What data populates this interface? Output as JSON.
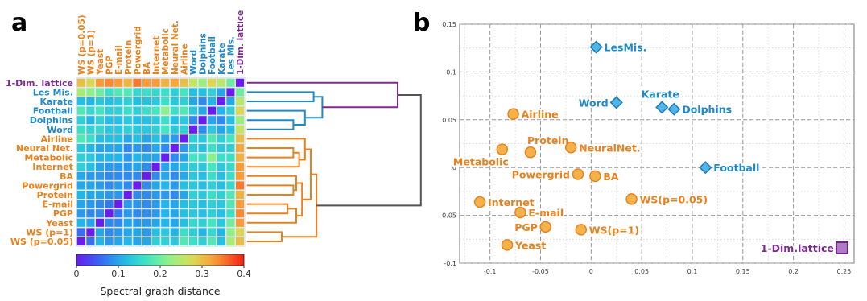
{
  "panels": {
    "a": "a",
    "b": "b"
  },
  "colors": {
    "orange": "#e8821e",
    "blue": "#1f8ac8",
    "purple": "#7b2c8e",
    "gray": "#555555",
    "grid": "#b3b3b3"
  },
  "chart_data": [
    {
      "type": "heatmap",
      "panel": "a",
      "rows": [
        "1-Dim. lattice",
        "Les Mis.",
        "Karate",
        "Football",
        "Dolphins",
        "Word",
        "Airline",
        "Neural Net.",
        "Metabolic",
        "Internet",
        "BA",
        "Powergrid",
        "Protein",
        "E-mail",
        "PGP",
        "Yeast",
        "WS (p=1)",
        "WS (p=0.05)"
      ],
      "columns": [
        "WS (p=0.05)",
        "WS (p=1)",
        "Yeast",
        "PGP",
        "E-mail",
        "Protein",
        "Powergrid",
        "BA",
        "Internet",
        "Metabolic",
        "Neural Net.",
        "Airline",
        "Word",
        "Dolphins",
        "Football",
        "Karate",
        "Les Mis.",
        "1-Dim. lattice"
      ],
      "row_groups": [
        "purple",
        "blue",
        "blue",
        "blue",
        "blue",
        "blue",
        "orange",
        "orange",
        "orange",
        "orange",
        "orange",
        "orange",
        "orange",
        "orange",
        "orange",
        "orange",
        "orange",
        "orange"
      ],
      "column_groups": [
        "orange",
        "orange",
        "orange",
        "orange",
        "orange",
        "orange",
        "orange",
        "orange",
        "orange",
        "orange",
        "orange",
        "orange",
        "blue",
        "blue",
        "blue",
        "blue",
        "blue",
        "purple"
      ],
      "values": [
        [
          0.3,
          0.28,
          0.33,
          0.34,
          0.33,
          0.31,
          0.35,
          0.33,
          0.33,
          0.31,
          0.32,
          0.3,
          0.26,
          0.23,
          0.28,
          0.25,
          0.2,
          0.0
        ],
        [
          0.24,
          0.22,
          0.2,
          0.16,
          0.18,
          0.18,
          0.15,
          0.16,
          0.15,
          0.16,
          0.14,
          0.17,
          0.12,
          0.12,
          0.14,
          0.1,
          0.0,
          0.2
        ],
        [
          0.12,
          0.11,
          0.13,
          0.12,
          0.13,
          0.14,
          0.12,
          0.12,
          0.13,
          0.16,
          0.13,
          0.14,
          0.1,
          0.08,
          0.11,
          0.0,
          0.1,
          0.25
        ],
        [
          0.18,
          0.15,
          0.17,
          0.14,
          0.14,
          0.16,
          0.14,
          0.16,
          0.17,
          0.22,
          0.16,
          0.18,
          0.13,
          0.1,
          0.0,
          0.11,
          0.14,
          0.28
        ],
        [
          0.14,
          0.11,
          0.14,
          0.12,
          0.12,
          0.13,
          0.12,
          0.12,
          0.13,
          0.16,
          0.12,
          0.13,
          0.08,
          0.0,
          0.1,
          0.08,
          0.12,
          0.23
        ],
        [
          0.16,
          0.14,
          0.15,
          0.13,
          0.13,
          0.14,
          0.13,
          0.13,
          0.14,
          0.17,
          0.13,
          0.14,
          0.0,
          0.08,
          0.13,
          0.1,
          0.12,
          0.26
        ],
        [
          0.18,
          0.16,
          0.12,
          0.12,
          0.12,
          0.1,
          0.12,
          0.1,
          0.12,
          0.1,
          0.09,
          0.0,
          0.14,
          0.13,
          0.18,
          0.14,
          0.17,
          0.3
        ],
        [
          0.13,
          0.11,
          0.1,
          0.1,
          0.1,
          0.08,
          0.09,
          0.08,
          0.1,
          0.08,
          0.0,
          0.09,
          0.13,
          0.12,
          0.16,
          0.13,
          0.14,
          0.32
        ],
        [
          0.14,
          0.13,
          0.11,
          0.11,
          0.11,
          0.09,
          0.11,
          0.1,
          0.1,
          0.0,
          0.08,
          0.1,
          0.17,
          0.16,
          0.22,
          0.16,
          0.16,
          0.31
        ],
        [
          0.14,
          0.12,
          0.1,
          0.09,
          0.09,
          0.09,
          0.1,
          0.08,
          0.0,
          0.1,
          0.1,
          0.12,
          0.14,
          0.13,
          0.17,
          0.13,
          0.15,
          0.33
        ],
        [
          0.1,
          0.09,
          0.09,
          0.08,
          0.08,
          0.08,
          0.08,
          0.0,
          0.08,
          0.1,
          0.08,
          0.1,
          0.13,
          0.12,
          0.16,
          0.12,
          0.16,
          0.33
        ],
        [
          0.1,
          0.1,
          0.09,
          0.08,
          0.09,
          0.08,
          0.0,
          0.08,
          0.1,
          0.11,
          0.09,
          0.12,
          0.13,
          0.12,
          0.14,
          0.12,
          0.15,
          0.35
        ],
        [
          0.11,
          0.1,
          0.1,
          0.09,
          0.09,
          0.0,
          0.08,
          0.08,
          0.09,
          0.09,
          0.08,
          0.1,
          0.14,
          0.13,
          0.16,
          0.14,
          0.18,
          0.31
        ],
        [
          0.1,
          0.09,
          0.08,
          0.07,
          0.0,
          0.09,
          0.09,
          0.08,
          0.09,
          0.11,
          0.1,
          0.12,
          0.13,
          0.12,
          0.14,
          0.13,
          0.18,
          0.33
        ],
        [
          0.09,
          0.08,
          0.08,
          0.0,
          0.07,
          0.09,
          0.08,
          0.08,
          0.09,
          0.11,
          0.1,
          0.12,
          0.13,
          0.12,
          0.14,
          0.12,
          0.16,
          0.34
        ],
        [
          0.11,
          0.1,
          0.0,
          0.08,
          0.08,
          0.1,
          0.09,
          0.09,
          0.1,
          0.11,
          0.1,
          0.12,
          0.15,
          0.14,
          0.17,
          0.13,
          0.2,
          0.33
        ],
        [
          0.06,
          0.0,
          0.1,
          0.08,
          0.09,
          0.1,
          0.1,
          0.09,
          0.12,
          0.13,
          0.11,
          0.16,
          0.14,
          0.11,
          0.15,
          0.11,
          0.22,
          0.28
        ],
        [
          0.0,
          0.06,
          0.11,
          0.09,
          0.1,
          0.11,
          0.1,
          0.1,
          0.14,
          0.14,
          0.13,
          0.18,
          0.16,
          0.14,
          0.18,
          0.12,
          0.24,
          0.3
        ]
      ],
      "colorbar": {
        "label": "Spectral graph distance",
        "range": [
          0,
          0.4
        ],
        "ticks": [
          "0",
          "0.1",
          "0.2",
          "0.3",
          "0.4"
        ],
        "colormap": "rainbow"
      },
      "dendrogram": {
        "links": [
          {
            "a": "WS (p=0.05)",
            "b": "WS (p=1)",
            "h": 0.06
          },
          {
            "a": "PGP",
            "b": "E-mail",
            "h": 0.07
          },
          {
            "a": "Yeast",
            "b": "PGP+E-mail",
            "h": 0.085
          },
          {
            "a": "Protein",
            "b": "Powergrid",
            "h": 0.08
          },
          {
            "a": "BA",
            "b": "Protein+Powergrid",
            "h": 0.085
          },
          {
            "a": "BA+Protein+Powergrid",
            "b": "Yeast+PGP+E-mail",
            "h": 0.095
          },
          {
            "a": "Neural Net.",
            "b": "Metabolic",
            "h": 0.08
          },
          {
            "a": "Internet",
            "b": "Neural Net.+Metabolic",
            "h": 0.09
          },
          {
            "a": "Airline",
            "b": "Internet+Neural Net.+Metabolic",
            "h": 0.1
          },
          {
            "a": "Airline group",
            "b": "BA group",
            "h": 0.11
          },
          {
            "a": "Orange cluster",
            "b": "WS pair",
            "h": 0.12
          },
          {
            "a": "Dolphins",
            "b": "Word",
            "h": 0.08
          },
          {
            "a": "Football",
            "b": "Dolphins+Word",
            "h": 0.1
          },
          {
            "a": "Karate",
            "b": "Les Mis.",
            "h": 0.115
          },
          {
            "a": "Karate+Les Mis.",
            "b": "Football+Dolphins+Word",
            "h": 0.13
          },
          {
            "a": "1-Dim. lattice",
            "b": "Blue cluster",
            "h": 0.26
          },
          {
            "a": "Purple+Blue",
            "b": "Orange cluster",
            "h": 0.3
          }
        ]
      }
    },
    {
      "type": "scatter",
      "panel": "b",
      "xlim": [
        -0.13,
        0.26
      ],
      "ylim": [
        -0.1,
        0.15
      ],
      "xticks": [
        -0.1,
        -0.05,
        0,
        0.05,
        0.1,
        0.15,
        0.2,
        0.25
      ],
      "yticks": [
        0.15,
        0.1,
        0.05,
        0,
        -0.05,
        -0.1
      ],
      "xtick_labels": [
        "-0.1",
        "-0.05",
        "0",
        "0.05",
        "0.1",
        "0.15",
        "0.2",
        "0.25"
      ],
      "ytick_labels": [
        "0.15",
        "0.1",
        "0.05",
        "0",
        "-0.05",
        "-0.1"
      ],
      "grid": true,
      "points": [
        {
          "label": "LesMis.",
          "x": 0.005,
          "y": 0.126,
          "group": "blue",
          "marker": "diamond",
          "label_pos": "right"
        },
        {
          "label": "Word",
          "x": 0.025,
          "y": 0.068,
          "group": "blue",
          "marker": "diamond",
          "label_pos": "left"
        },
        {
          "label": "Karate",
          "x": 0.07,
          "y": 0.063,
          "group": "blue",
          "marker": "diamond",
          "label_pos": "above"
        },
        {
          "label": "Dolphins",
          "x": 0.082,
          "y": 0.061,
          "group": "blue",
          "marker": "diamond",
          "label_pos": "right"
        },
        {
          "label": "Football",
          "x": 0.113,
          "y": 0.0,
          "group": "blue",
          "marker": "diamond",
          "label_pos": "right"
        },
        {
          "label": "Airline",
          "x": -0.077,
          "y": 0.056,
          "group": "orange",
          "marker": "circle",
          "label_pos": "right"
        },
        {
          "label": "Protein",
          "x": -0.06,
          "y": 0.016,
          "group": "orange",
          "marker": "circle",
          "label_pos": "above-right"
        },
        {
          "label": "Metabolic",
          "x": -0.088,
          "y": 0.019,
          "group": "orange",
          "marker": "circle",
          "label_pos": "below-left"
        },
        {
          "label": "NeuralNet.",
          "x": -0.02,
          "y": 0.021,
          "group": "orange",
          "marker": "circle",
          "label_pos": "right"
        },
        {
          "label": "Powergrid",
          "x": -0.013,
          "y": -0.007,
          "group": "orange",
          "marker": "circle",
          "label_pos": "left"
        },
        {
          "label": "BA",
          "x": 0.004,
          "y": -0.009,
          "group": "orange",
          "marker": "circle",
          "label_pos": "right"
        },
        {
          "label": "WS(p=0.05)",
          "x": 0.04,
          "y": -0.033,
          "group": "orange",
          "marker": "circle",
          "label_pos": "right"
        },
        {
          "label": "Internet",
          "x": -0.11,
          "y": -0.036,
          "group": "orange",
          "marker": "circle",
          "label_pos": "right"
        },
        {
          "label": "E-mail",
          "x": -0.07,
          "y": -0.047,
          "group": "orange",
          "marker": "circle",
          "label_pos": "right"
        },
        {
          "label": "PGP",
          "x": -0.045,
          "y": -0.062,
          "group": "orange",
          "marker": "circle",
          "label_pos": "left"
        },
        {
          "label": "WS(p=1)",
          "x": -0.01,
          "y": -0.065,
          "group": "orange",
          "marker": "circle",
          "label_pos": "right"
        },
        {
          "label": "Yeast",
          "x": -0.083,
          "y": -0.081,
          "group": "orange",
          "marker": "circle",
          "label_pos": "right"
        },
        {
          "label": "1-Dim.lattice",
          "x": 0.248,
          "y": -0.084,
          "group": "purple",
          "marker": "square",
          "label_pos": "left"
        }
      ]
    }
  ]
}
